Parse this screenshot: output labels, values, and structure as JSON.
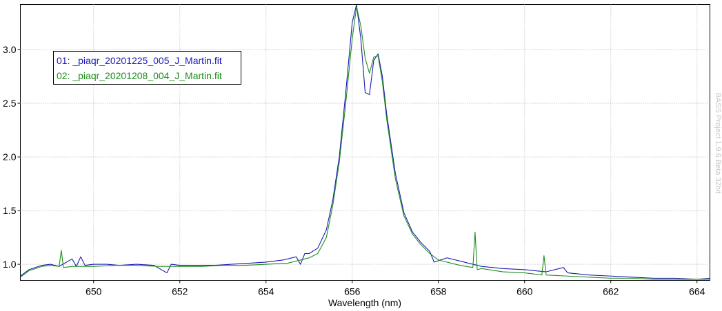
{
  "chart_data": {
    "type": "line",
    "xlabel": "Wavelength (nm)",
    "ylabel": "",
    "title": "",
    "xlim": [
      648.3,
      664.3
    ],
    "ylim": [
      0.85,
      3.42
    ],
    "x_ticks": [
      650,
      652,
      654,
      656,
      658,
      660,
      662,
      664
    ],
    "y_ticks": [
      1.0,
      1.5,
      2.0,
      2.5,
      3.0
    ],
    "x_tick_labels": [
      "650",
      "652",
      "654",
      "656",
      "658",
      "660",
      "662",
      "664"
    ],
    "y_tick_labels": [
      "1.0",
      "1.5",
      "2.0",
      "2.5",
      "3.0"
    ],
    "grid": true,
    "legend_position": "top-left",
    "watermark": "BASS Project 1.9.6 Beta 32bit",
    "series": [
      {
        "name": "01: _piaqr_20201225_005_J_Martin.fit",
        "color": "#1a1ab4",
        "x": [
          648.3,
          648.5,
          648.8,
          649.0,
          649.2,
          649.5,
          649.6,
          649.7,
          649.8,
          650.0,
          650.3,
          650.6,
          651.0,
          651.4,
          651.7,
          651.8,
          652.0,
          652.4,
          652.8,
          653.2,
          653.6,
          654.0,
          654.4,
          654.7,
          654.8,
          654.9,
          655.0,
          655.2,
          655.4,
          655.55,
          655.7,
          655.85,
          656.0,
          656.1,
          656.2,
          656.3,
          656.4,
          656.5,
          656.6,
          656.7,
          656.8,
          657.0,
          657.2,
          657.4,
          657.6,
          657.8,
          657.9,
          658.2,
          658.6,
          659.0,
          659.5,
          660.0,
          660.5,
          660.9,
          661.0,
          661.5,
          662.0,
          662.5,
          663.0,
          663.5,
          664.0,
          664.3
        ],
        "y": [
          0.89,
          0.95,
          0.99,
          1.0,
          0.98,
          1.05,
          0.98,
          1.07,
          0.99,
          1.0,
          1.0,
          0.99,
          1.0,
          0.99,
          0.92,
          1.0,
          0.99,
          0.99,
          0.99,
          1.0,
          1.01,
          1.02,
          1.04,
          1.07,
          1.0,
          1.1,
          1.1,
          1.15,
          1.32,
          1.6,
          2.0,
          2.6,
          3.25,
          3.42,
          3.1,
          2.6,
          2.58,
          2.9,
          2.96,
          2.75,
          2.4,
          1.85,
          1.48,
          1.3,
          1.2,
          1.12,
          1.02,
          1.06,
          1.02,
          0.98,
          0.96,
          0.95,
          0.93,
          0.97,
          0.92,
          0.9,
          0.89,
          0.88,
          0.87,
          0.87,
          0.86,
          0.87
        ]
      },
      {
        "name": "02: _piaqr_20201208_004_J_Martin.fit",
        "color": "#1e8c1e",
        "x": [
          648.3,
          648.5,
          648.8,
          649.0,
          649.2,
          649.25,
          649.3,
          649.5,
          650.0,
          650.5,
          651.0,
          651.5,
          652.0,
          652.5,
          653.0,
          653.5,
          654.0,
          654.5,
          654.9,
          655.0,
          655.2,
          655.4,
          655.55,
          655.7,
          655.85,
          656.0,
          656.1,
          656.2,
          656.3,
          656.4,
          656.5,
          656.6,
          656.7,
          656.8,
          657.0,
          657.2,
          657.4,
          657.6,
          657.8,
          658.0,
          658.5,
          658.8,
          658.85,
          658.9,
          659.0,
          659.5,
          660.0,
          660.4,
          660.45,
          660.5,
          661.0,
          661.5,
          662.0,
          662.5,
          663.0,
          663.5,
          664.0,
          664.3
        ],
        "y": [
          0.88,
          0.94,
          0.98,
          0.99,
          0.98,
          1.13,
          0.97,
          0.98,
          0.98,
          0.99,
          0.99,
          0.98,
          0.98,
          0.98,
          0.99,
          0.99,
          1.0,
          1.01,
          1.05,
          1.06,
          1.1,
          1.25,
          1.55,
          1.95,
          2.5,
          3.1,
          3.4,
          3.22,
          2.92,
          2.78,
          2.93,
          2.94,
          2.7,
          2.35,
          1.8,
          1.45,
          1.28,
          1.18,
          1.1,
          1.04,
          0.99,
          0.97,
          1.3,
          0.95,
          0.96,
          0.93,
          0.92,
          0.9,
          1.08,
          0.9,
          0.89,
          0.88,
          0.87,
          0.87,
          0.86,
          0.86,
          0.86,
          0.86
        ]
      }
    ]
  }
}
